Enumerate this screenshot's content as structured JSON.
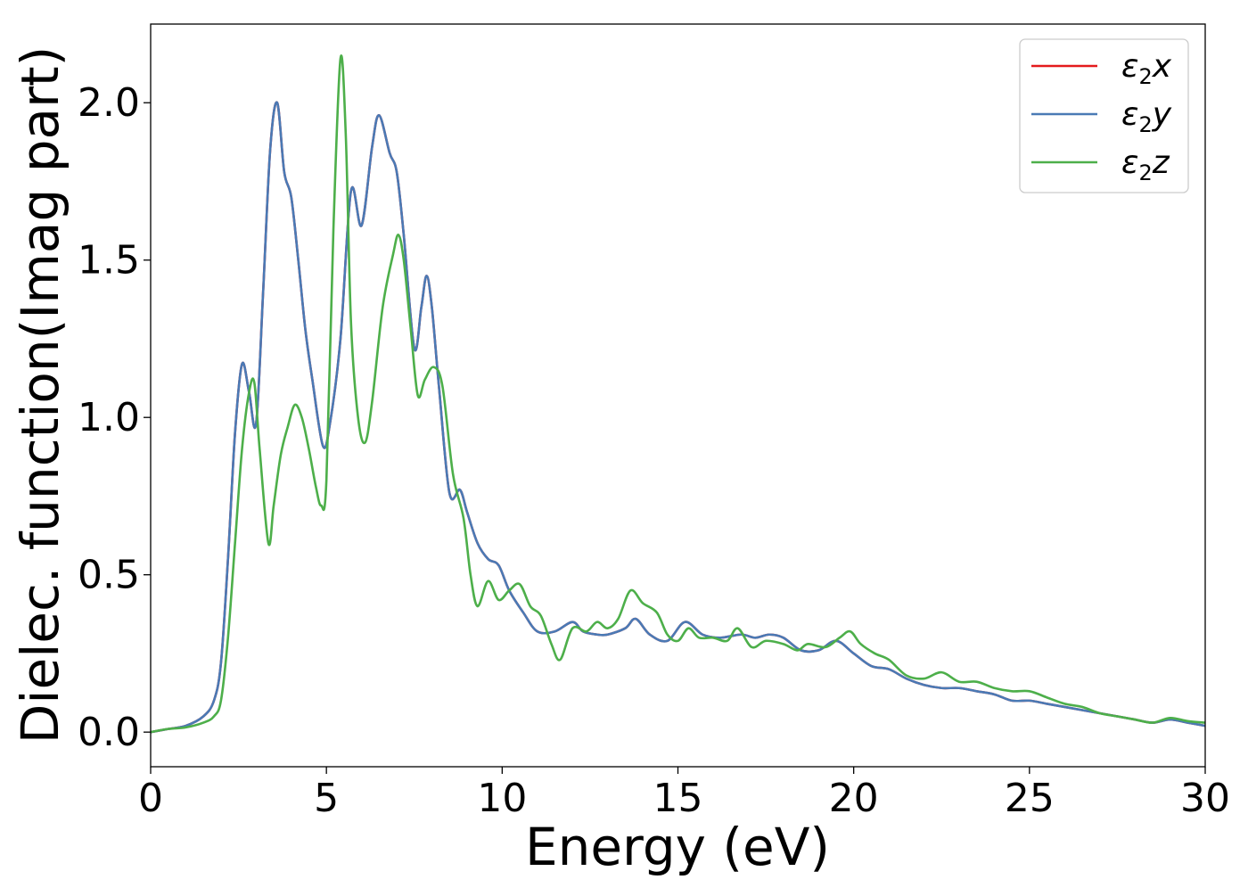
{
  "chart_data": {
    "type": "line",
    "title": "",
    "xlabel": "Energy (eV)",
    "ylabel": "Dielec. function(Imag part)",
    "xlim": [
      0,
      30
    ],
    "ylim": [
      -0.11,
      2.25
    ],
    "xticks": [
      0,
      5,
      10,
      15,
      20,
      25,
      30
    ],
    "xtick_labels": [
      "0",
      "5",
      "10",
      "15",
      "20",
      "25",
      "30"
    ],
    "yticks": [
      0.0,
      0.5,
      1.0,
      1.5,
      2.0
    ],
    "ytick_labels": [
      "0.0",
      "0.5",
      "1.0",
      "1.5",
      "2.0"
    ],
    "grid": false,
    "legend_position": "top-right",
    "series": [
      {
        "name": "ε₂x",
        "legend_base": "ε",
        "legend_sub": "2",
        "legend_var": "x",
        "color": "#e41a1c",
        "points": [
          [
            0,
            0.0
          ],
          [
            0.5,
            0.01
          ],
          [
            1.0,
            0.02
          ],
          [
            1.5,
            0.05
          ],
          [
            1.8,
            0.1
          ],
          [
            2.0,
            0.22
          ],
          [
            2.2,
            0.55
          ],
          [
            2.4,
            0.95
          ],
          [
            2.6,
            1.17
          ],
          [
            2.8,
            1.08
          ],
          [
            3.0,
            0.98
          ],
          [
            3.2,
            1.4
          ],
          [
            3.4,
            1.85
          ],
          [
            3.6,
            2.0
          ],
          [
            3.8,
            1.78
          ],
          [
            4.0,
            1.7
          ],
          [
            4.2,
            1.5
          ],
          [
            4.4,
            1.28
          ],
          [
            4.6,
            1.12
          ],
          [
            4.9,
            0.91
          ],
          [
            5.1,
            0.98
          ],
          [
            5.4,
            1.25
          ],
          [
            5.7,
            1.72
          ],
          [
            6.0,
            1.61
          ],
          [
            6.3,
            1.86
          ],
          [
            6.5,
            1.96
          ],
          [
            6.8,
            1.84
          ],
          [
            7.0,
            1.78
          ],
          [
            7.2,
            1.58
          ],
          [
            7.5,
            1.22
          ],
          [
            7.7,
            1.35
          ],
          [
            7.85,
            1.45
          ],
          [
            8.0,
            1.35
          ],
          [
            8.2,
            1.1
          ],
          [
            8.5,
            0.76
          ],
          [
            8.8,
            0.77
          ],
          [
            9.0,
            0.7
          ],
          [
            9.3,
            0.6
          ],
          [
            9.6,
            0.55
          ],
          [
            9.9,
            0.53
          ],
          [
            10.2,
            0.45
          ],
          [
            10.6,
            0.38
          ],
          [
            11.0,
            0.32
          ],
          [
            11.5,
            0.32
          ],
          [
            12.0,
            0.35
          ],
          [
            12.3,
            0.32
          ],
          [
            12.7,
            0.31
          ],
          [
            13.0,
            0.31
          ],
          [
            13.5,
            0.33
          ],
          [
            13.8,
            0.36
          ],
          [
            14.2,
            0.31
          ],
          [
            14.7,
            0.29
          ],
          [
            15.2,
            0.35
          ],
          [
            15.7,
            0.31
          ],
          [
            16.2,
            0.3
          ],
          [
            16.8,
            0.31
          ],
          [
            17.2,
            0.3
          ],
          [
            17.6,
            0.31
          ],
          [
            18.0,
            0.3
          ],
          [
            18.5,
            0.26
          ],
          [
            19.0,
            0.26
          ],
          [
            19.5,
            0.29
          ],
          [
            20.0,
            0.25
          ],
          [
            20.5,
            0.21
          ],
          [
            21.0,
            0.2
          ],
          [
            21.5,
            0.17
          ],
          [
            22.0,
            0.15
          ],
          [
            22.5,
            0.14
          ],
          [
            23.0,
            0.14
          ],
          [
            23.5,
            0.13
          ],
          [
            24.0,
            0.12
          ],
          [
            24.5,
            0.1
          ],
          [
            25.0,
            0.1
          ],
          [
            25.5,
            0.09
          ],
          [
            26.0,
            0.08
          ],
          [
            26.5,
            0.07
          ],
          [
            27.0,
            0.06
          ],
          [
            27.5,
            0.05
          ],
          [
            28.0,
            0.04
          ],
          [
            28.5,
            0.03
          ],
          [
            29.0,
            0.04
          ],
          [
            29.5,
            0.03
          ],
          [
            30.0,
            0.02
          ]
        ]
      },
      {
        "name": "ε₂y",
        "legend_base": "ε",
        "legend_sub": "2",
        "legend_var": "y",
        "color": "#4a7ab5",
        "points": [
          [
            0,
            0.0
          ],
          [
            0.5,
            0.01
          ],
          [
            1.0,
            0.02
          ],
          [
            1.5,
            0.05
          ],
          [
            1.8,
            0.1
          ],
          [
            2.0,
            0.22
          ],
          [
            2.2,
            0.55
          ],
          [
            2.4,
            0.95
          ],
          [
            2.6,
            1.17
          ],
          [
            2.8,
            1.08
          ],
          [
            3.0,
            0.98
          ],
          [
            3.2,
            1.4
          ],
          [
            3.4,
            1.85
          ],
          [
            3.6,
            2.0
          ],
          [
            3.8,
            1.78
          ],
          [
            4.0,
            1.7
          ],
          [
            4.2,
            1.5
          ],
          [
            4.4,
            1.28
          ],
          [
            4.6,
            1.12
          ],
          [
            4.9,
            0.91
          ],
          [
            5.1,
            0.98
          ],
          [
            5.4,
            1.25
          ],
          [
            5.7,
            1.72
          ],
          [
            6.0,
            1.61
          ],
          [
            6.3,
            1.86
          ],
          [
            6.5,
            1.96
          ],
          [
            6.8,
            1.84
          ],
          [
            7.0,
            1.78
          ],
          [
            7.2,
            1.58
          ],
          [
            7.5,
            1.22
          ],
          [
            7.7,
            1.35
          ],
          [
            7.85,
            1.45
          ],
          [
            8.0,
            1.35
          ],
          [
            8.2,
            1.1
          ],
          [
            8.5,
            0.76
          ],
          [
            8.8,
            0.77
          ],
          [
            9.0,
            0.7
          ],
          [
            9.3,
            0.6
          ],
          [
            9.6,
            0.55
          ],
          [
            9.9,
            0.53
          ],
          [
            10.2,
            0.45
          ],
          [
            10.6,
            0.38
          ],
          [
            11.0,
            0.32
          ],
          [
            11.5,
            0.32
          ],
          [
            12.0,
            0.35
          ],
          [
            12.3,
            0.32
          ],
          [
            12.7,
            0.31
          ],
          [
            13.0,
            0.31
          ],
          [
            13.5,
            0.33
          ],
          [
            13.8,
            0.36
          ],
          [
            14.2,
            0.31
          ],
          [
            14.7,
            0.29
          ],
          [
            15.2,
            0.35
          ],
          [
            15.7,
            0.31
          ],
          [
            16.2,
            0.3
          ],
          [
            16.8,
            0.31
          ],
          [
            17.2,
            0.3
          ],
          [
            17.6,
            0.31
          ],
          [
            18.0,
            0.3
          ],
          [
            18.5,
            0.26
          ],
          [
            19.0,
            0.26
          ],
          [
            19.5,
            0.29
          ],
          [
            20.0,
            0.25
          ],
          [
            20.5,
            0.21
          ],
          [
            21.0,
            0.2
          ],
          [
            21.5,
            0.17
          ],
          [
            22.0,
            0.15
          ],
          [
            22.5,
            0.14
          ],
          [
            23.0,
            0.14
          ],
          [
            23.5,
            0.13
          ],
          [
            24.0,
            0.12
          ],
          [
            24.5,
            0.1
          ],
          [
            25.0,
            0.1
          ],
          [
            25.5,
            0.09
          ],
          [
            26.0,
            0.08
          ],
          [
            26.5,
            0.07
          ],
          [
            27.0,
            0.06
          ],
          [
            27.5,
            0.05
          ],
          [
            28.0,
            0.04
          ],
          [
            28.5,
            0.03
          ],
          [
            29.0,
            0.04
          ],
          [
            29.5,
            0.03
          ],
          [
            30.0,
            0.02
          ]
        ]
      },
      {
        "name": "ε₂z",
        "legend_base": "ε",
        "legend_sub": "2",
        "legend_var": "z",
        "color": "#4daf4a",
        "points": [
          [
            0,
            0.0
          ],
          [
            0.5,
            0.01
          ],
          [
            1.0,
            0.015
          ],
          [
            1.5,
            0.03
          ],
          [
            1.8,
            0.05
          ],
          [
            2.0,
            0.1
          ],
          [
            2.2,
            0.3
          ],
          [
            2.4,
            0.6
          ],
          [
            2.6,
            0.9
          ],
          [
            2.8,
            1.08
          ],
          [
            2.95,
            1.11
          ],
          [
            3.1,
            0.9
          ],
          [
            3.35,
            0.6
          ],
          [
            3.5,
            0.72
          ],
          [
            3.7,
            0.88
          ],
          [
            3.9,
            0.97
          ],
          [
            4.1,
            1.04
          ],
          [
            4.3,
            1.0
          ],
          [
            4.5,
            0.9
          ],
          [
            4.7,
            0.78
          ],
          [
            4.85,
            0.72
          ],
          [
            5.0,
            0.8
          ],
          [
            5.2,
            1.6
          ],
          [
            5.4,
            2.14
          ],
          [
            5.55,
            1.9
          ],
          [
            5.7,
            1.3
          ],
          [
            5.9,
            1.0
          ],
          [
            6.1,
            0.92
          ],
          [
            6.3,
            1.05
          ],
          [
            6.6,
            1.35
          ],
          [
            6.9,
            1.52
          ],
          [
            7.05,
            1.58
          ],
          [
            7.2,
            1.5
          ],
          [
            7.4,
            1.28
          ],
          [
            7.6,
            1.07
          ],
          [
            7.8,
            1.12
          ],
          [
            8.05,
            1.16
          ],
          [
            8.3,
            1.1
          ],
          [
            8.6,
            0.82
          ],
          [
            8.9,
            0.68
          ],
          [
            9.1,
            0.5
          ],
          [
            9.3,
            0.4
          ],
          [
            9.6,
            0.48
          ],
          [
            9.9,
            0.42
          ],
          [
            10.2,
            0.45
          ],
          [
            10.5,
            0.47
          ],
          [
            10.8,
            0.4
          ],
          [
            11.1,
            0.37
          ],
          [
            11.4,
            0.28
          ],
          [
            11.65,
            0.23
          ],
          [
            12.0,
            0.33
          ],
          [
            12.4,
            0.32
          ],
          [
            12.7,
            0.35
          ],
          [
            13.0,
            0.33
          ],
          [
            13.3,
            0.36
          ],
          [
            13.65,
            0.45
          ],
          [
            14.0,
            0.41
          ],
          [
            14.4,
            0.38
          ],
          [
            14.7,
            0.31
          ],
          [
            15.0,
            0.29
          ],
          [
            15.3,
            0.33
          ],
          [
            15.6,
            0.3
          ],
          [
            16.0,
            0.3
          ],
          [
            16.4,
            0.29
          ],
          [
            16.7,
            0.33
          ],
          [
            17.1,
            0.27
          ],
          [
            17.5,
            0.29
          ],
          [
            18.0,
            0.28
          ],
          [
            18.4,
            0.26
          ],
          [
            18.7,
            0.28
          ],
          [
            19.2,
            0.27
          ],
          [
            19.6,
            0.3
          ],
          [
            19.9,
            0.32
          ],
          [
            20.2,
            0.28
          ],
          [
            20.6,
            0.25
          ],
          [
            21.0,
            0.23
          ],
          [
            21.5,
            0.18
          ],
          [
            22.0,
            0.17
          ],
          [
            22.5,
            0.19
          ],
          [
            23.0,
            0.16
          ],
          [
            23.5,
            0.16
          ],
          [
            24.0,
            0.14
          ],
          [
            24.5,
            0.13
          ],
          [
            25.0,
            0.13
          ],
          [
            25.5,
            0.11
          ],
          [
            26.0,
            0.09
          ],
          [
            26.5,
            0.08
          ],
          [
            27.0,
            0.06
          ],
          [
            27.5,
            0.05
          ],
          [
            28.0,
            0.04
          ],
          [
            28.5,
            0.03
          ],
          [
            29.0,
            0.045
          ],
          [
            29.5,
            0.035
          ],
          [
            30.0,
            0.03
          ]
        ]
      }
    ]
  }
}
